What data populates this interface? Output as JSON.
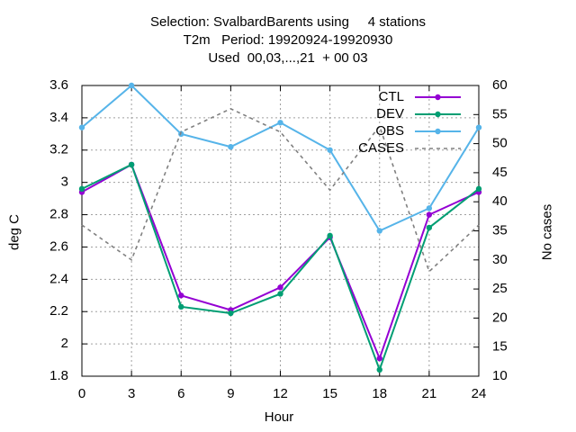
{
  "chart_data": {
    "type": "line",
    "title_lines": [
      "Selection: SvalbardBarents using     4 stations",
      "T2m   Period: 19920924-19920930",
      "Used  00,03,...,21  + 00 03"
    ],
    "xlabel": "Hour",
    "ylabel": "deg C",
    "y2label": "No cases",
    "x": [
      0,
      3,
      6,
      9,
      12,
      15,
      18,
      21,
      24
    ],
    "xlim": [
      0,
      24
    ],
    "ylim": [
      1.8,
      3.6
    ],
    "y2lim": [
      10,
      60
    ],
    "x_ticks": [
      0,
      3,
      6,
      9,
      12,
      15,
      18,
      21,
      24
    ],
    "y_ticks": [
      "1.8",
      "2",
      "2.2",
      "2.4",
      "2.6",
      "2.8",
      "3",
      "3.2",
      "3.4",
      "3.6"
    ],
    "y2_ticks": [
      "10",
      "15",
      "20",
      "25",
      "30",
      "35",
      "40",
      "45",
      "50",
      "55",
      "60"
    ],
    "grid": true,
    "legend_position": "top-right",
    "series": [
      {
        "name": "CTL",
        "axis": "y",
        "color": "#9400d3",
        "style": "solid",
        "marker": true,
        "values": [
          2.94,
          3.11,
          2.3,
          2.21,
          2.35,
          2.66,
          1.91,
          2.8,
          2.94
        ]
      },
      {
        "name": "DEV",
        "axis": "y",
        "color": "#009e73",
        "style": "solid",
        "marker": true,
        "values": [
          2.96,
          3.11,
          2.23,
          2.19,
          2.31,
          2.67,
          1.84,
          2.72,
          2.96
        ]
      },
      {
        "name": "OBS",
        "axis": "y",
        "color": "#56b4e9",
        "style": "solid",
        "marker": true,
        "values": [
          3.34,
          3.6,
          3.3,
          3.22,
          3.37,
          3.2,
          2.7,
          2.84,
          3.34
        ]
      },
      {
        "name": "CASES",
        "axis": "y2",
        "color": "#808080",
        "style": "dashed",
        "marker": false,
        "values": [
          36,
          30,
          52,
          56,
          52,
          42,
          53,
          28,
          36
        ]
      }
    ]
  }
}
